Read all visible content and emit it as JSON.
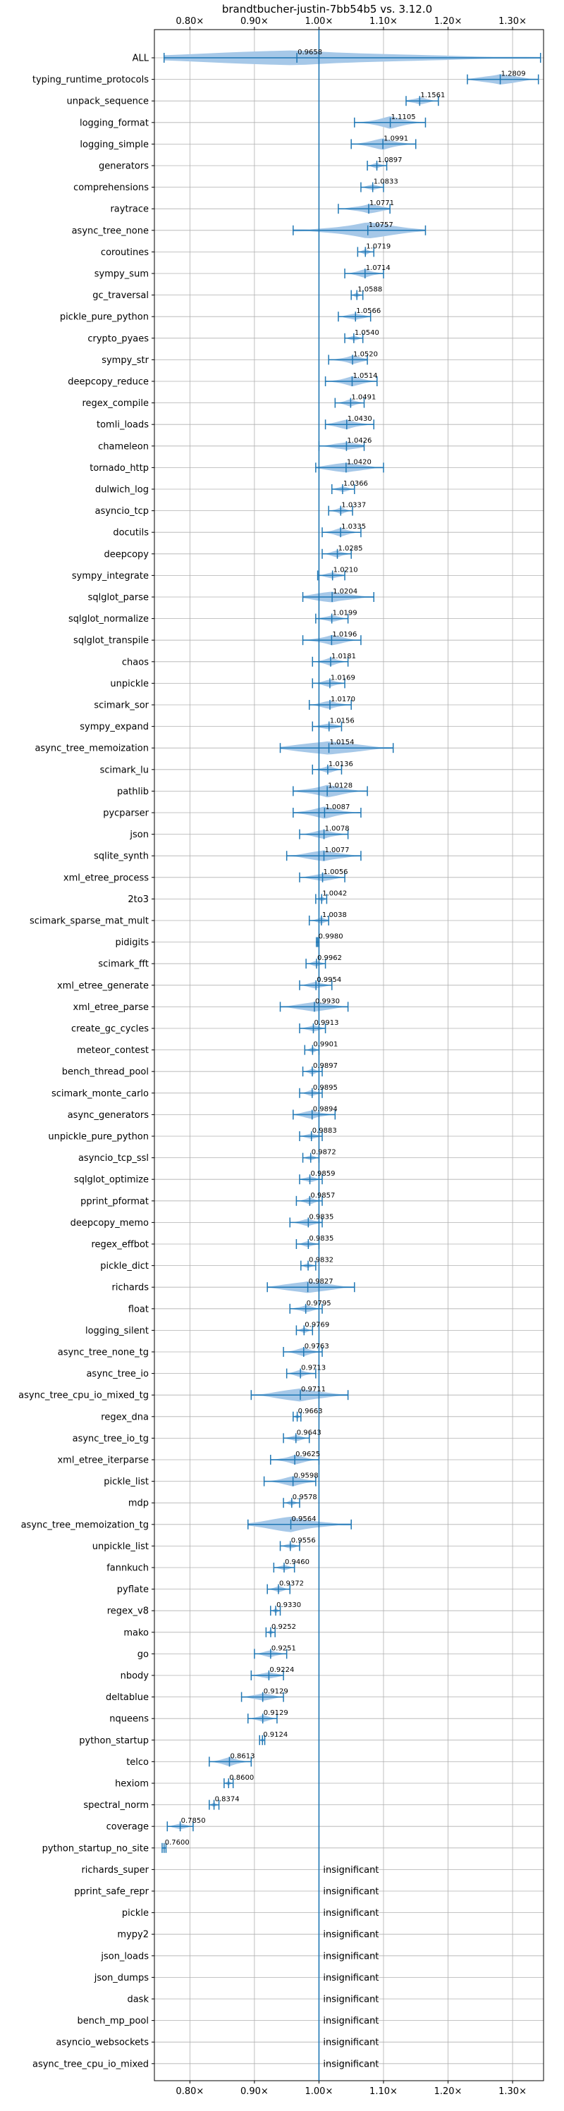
{
  "chart_data": {
    "type": "violin",
    "title": "brandtbucher-justin-7bb54b5 vs. 3.12.0",
    "xlabel": "",
    "ylabel": "",
    "xlim": [
      0.745,
      1.348
    ],
    "x_ticks": [
      {
        "value": 0.8,
        "label": "0.80×"
      },
      {
        "value": 0.9,
        "label": "0.90×"
      },
      {
        "value": 1.0,
        "label": "1.00×"
      },
      {
        "value": 1.1,
        "label": "1.10×"
      },
      {
        "value": 1.2,
        "label": "1.20×"
      },
      {
        "value": 1.3,
        "label": "1.30×"
      }
    ],
    "reference_line": 1.0,
    "grid": true,
    "color": "#1f77b4",
    "fill_color": "#a6c8e8",
    "insignificant_label": "insignificant",
    "benchmarks": [
      {
        "name": "ALL",
        "median": 0.9658,
        "min": 0.76,
        "max": 1.3433,
        "show_label": true
      },
      {
        "name": "typing_runtime_protocols",
        "median": 1.2809,
        "min": 1.23,
        "max": 1.34,
        "show_label": true
      },
      {
        "name": "unpack_sequence",
        "median": 1.1561,
        "min": 1.135,
        "max": 1.185,
        "show_label": true
      },
      {
        "name": "logging_format",
        "median": 1.1105,
        "min": 1.055,
        "max": 1.165,
        "show_label": true
      },
      {
        "name": "logging_simple",
        "median": 1.0991,
        "min": 1.05,
        "max": 1.15,
        "show_label": true
      },
      {
        "name": "generators",
        "median": 1.0897,
        "min": 1.075,
        "max": 1.105,
        "show_label": true
      },
      {
        "name": "comprehensions",
        "median": 1.0833,
        "min": 1.065,
        "max": 1.1,
        "show_label": true
      },
      {
        "name": "raytrace",
        "median": 1.0771,
        "min": 1.03,
        "max": 1.11,
        "show_label": true
      },
      {
        "name": "async_tree_none",
        "median": 1.0757,
        "min": 0.96,
        "max": 1.165,
        "show_label": true
      },
      {
        "name": "coroutines",
        "median": 1.0719,
        "min": 1.06,
        "max": 1.085,
        "show_label": true
      },
      {
        "name": "sympy_sum",
        "median": 1.0714,
        "min": 1.04,
        "max": 1.1,
        "show_label": true
      },
      {
        "name": "gc_traversal",
        "median": 1.0588,
        "min": 1.05,
        "max": 1.068,
        "show_label": true
      },
      {
        "name": "pickle_pure_python",
        "median": 1.0566,
        "min": 1.03,
        "max": 1.08,
        "show_label": true
      },
      {
        "name": "crypto_pyaes",
        "median": 1.054,
        "min": 1.04,
        "max": 1.068,
        "show_label": true
      },
      {
        "name": "sympy_str",
        "median": 1.052,
        "min": 1.015,
        "max": 1.075,
        "show_label": true
      },
      {
        "name": "deepcopy_reduce",
        "median": 1.0514,
        "min": 1.01,
        "max": 1.09,
        "show_label": true
      },
      {
        "name": "regex_compile",
        "median": 1.0491,
        "min": 1.025,
        "max": 1.07,
        "show_label": true
      },
      {
        "name": "tomli_loads",
        "median": 1.043,
        "min": 1.01,
        "max": 1.085,
        "show_label": true
      },
      {
        "name": "chameleon",
        "median": 1.0426,
        "min": 1.0,
        "max": 1.07,
        "show_label": true
      },
      {
        "name": "tornado_http",
        "median": 1.042,
        "min": 0.995,
        "max": 1.1,
        "show_label": true
      },
      {
        "name": "dulwich_log",
        "median": 1.0366,
        "min": 1.02,
        "max": 1.055,
        "show_label": true
      },
      {
        "name": "asyncio_tcp",
        "median": 1.0337,
        "min": 1.015,
        "max": 1.052,
        "show_label": true
      },
      {
        "name": "docutils",
        "median": 1.0335,
        "min": 1.005,
        "max": 1.065,
        "show_label": true
      },
      {
        "name": "deepcopy",
        "median": 1.0285,
        "min": 1.005,
        "max": 1.05,
        "show_label": true
      },
      {
        "name": "sympy_integrate",
        "median": 1.021,
        "min": 0.998,
        "max": 1.04,
        "show_label": true
      },
      {
        "name": "sqlglot_parse",
        "median": 1.0204,
        "min": 0.975,
        "max": 1.085,
        "show_label": true
      },
      {
        "name": "sqlglot_normalize",
        "median": 1.0199,
        "min": 0.995,
        "max": 1.045,
        "show_label": true
      },
      {
        "name": "sqlglot_transpile",
        "median": 1.0196,
        "min": 0.975,
        "max": 1.065,
        "show_label": true
      },
      {
        "name": "chaos",
        "median": 1.0181,
        "min": 0.99,
        "max": 1.045,
        "show_label": true
      },
      {
        "name": "unpickle",
        "median": 1.0169,
        "min": 0.99,
        "max": 1.04,
        "show_label": true
      },
      {
        "name": "scimark_sor",
        "median": 1.017,
        "min": 0.985,
        "max": 1.05,
        "show_label": true
      },
      {
        "name": "sympy_expand",
        "median": 1.0156,
        "min": 0.99,
        "max": 1.035,
        "show_label": true
      },
      {
        "name": "async_tree_memoization",
        "median": 1.0154,
        "min": 0.94,
        "max": 1.115,
        "show_label": true
      },
      {
        "name": "scimark_lu",
        "median": 1.0136,
        "min": 0.99,
        "max": 1.035,
        "show_label": true
      },
      {
        "name": "pathlib",
        "median": 1.0128,
        "min": 0.96,
        "max": 1.075,
        "show_label": true
      },
      {
        "name": "pycparser",
        "median": 1.0087,
        "min": 0.96,
        "max": 1.065,
        "show_label": true
      },
      {
        "name": "json",
        "median": 1.0078,
        "min": 0.97,
        "max": 1.045,
        "show_label": true
      },
      {
        "name": "sqlite_synth",
        "median": 1.0077,
        "min": 0.95,
        "max": 1.065,
        "show_label": true
      },
      {
        "name": "xml_etree_process",
        "median": 1.0056,
        "min": 0.97,
        "max": 1.04,
        "show_label": true
      },
      {
        "name": "2to3",
        "median": 1.0042,
        "min": 0.995,
        "max": 1.012,
        "show_label": true
      },
      {
        "name": "scimark_sparse_mat_mult",
        "median": 1.0038,
        "min": 0.985,
        "max": 1.015,
        "show_label": true
      },
      {
        "name": "pidigits",
        "median": 0.998,
        "min": 0.996,
        "max": 1.0,
        "show_label": true
      },
      {
        "name": "scimark_fft",
        "median": 0.9962,
        "min": 0.98,
        "max": 1.01,
        "show_label": true
      },
      {
        "name": "xml_etree_generate",
        "median": 0.9954,
        "min": 0.97,
        "max": 1.02,
        "show_label": true
      },
      {
        "name": "xml_etree_parse",
        "median": 0.993,
        "min": 0.94,
        "max": 1.045,
        "show_label": true
      },
      {
        "name": "create_gc_cycles",
        "median": 0.9913,
        "min": 0.97,
        "max": 1.01,
        "show_label": true
      },
      {
        "name": "meteor_contest",
        "median": 0.9901,
        "min": 0.978,
        "max": 1.0,
        "show_label": true
      },
      {
        "name": "bench_thread_pool",
        "median": 0.9897,
        "min": 0.975,
        "max": 1.005,
        "show_label": true
      },
      {
        "name": "scimark_monte_carlo",
        "median": 0.9895,
        "min": 0.97,
        "max": 1.005,
        "show_label": true
      },
      {
        "name": "async_generators",
        "median": 0.9894,
        "min": 0.96,
        "max": 1.025,
        "show_label": true
      },
      {
        "name": "unpickle_pure_python",
        "median": 0.9883,
        "min": 0.97,
        "max": 1.005,
        "show_label": true
      },
      {
        "name": "asyncio_tcp_ssl",
        "median": 0.9872,
        "min": 0.975,
        "max": 1.0,
        "show_label": true
      },
      {
        "name": "sqlglot_optimize",
        "median": 0.9859,
        "min": 0.97,
        "max": 1.005,
        "show_label": true
      },
      {
        "name": "pprint_pformat",
        "median": 0.9857,
        "min": 0.965,
        "max": 1.005,
        "show_label": true
      },
      {
        "name": "deepcopy_memo",
        "median": 0.9835,
        "min": 0.955,
        "max": 1.005,
        "show_label": true
      },
      {
        "name": "regex_effbot",
        "median": 0.9835,
        "min": 0.965,
        "max": 1.0,
        "show_label": true
      },
      {
        "name": "pickle_dict",
        "median": 0.9832,
        "min": 0.972,
        "max": 0.995,
        "show_label": true
      },
      {
        "name": "richards",
        "median": 0.9827,
        "min": 0.92,
        "max": 1.055,
        "show_label": true
      },
      {
        "name": "float",
        "median": 0.9795,
        "min": 0.955,
        "max": 1.005,
        "show_label": true
      },
      {
        "name": "logging_silent",
        "median": 0.9769,
        "min": 0.965,
        "max": 0.99,
        "show_label": true
      },
      {
        "name": "async_tree_none_tg",
        "median": 0.9763,
        "min": 0.945,
        "max": 1.005,
        "show_label": true
      },
      {
        "name": "async_tree_io",
        "median": 0.9713,
        "min": 0.95,
        "max": 0.995,
        "show_label": true
      },
      {
        "name": "async_tree_cpu_io_mixed_tg",
        "median": 0.9711,
        "min": 0.895,
        "max": 1.045,
        "show_label": true
      },
      {
        "name": "regex_dna",
        "median": 0.9663,
        "min": 0.96,
        "max": 0.972,
        "show_label": true
      },
      {
        "name": "async_tree_io_tg",
        "median": 0.9643,
        "min": 0.945,
        "max": 0.985,
        "show_label": true
      },
      {
        "name": "xml_etree_iterparse",
        "median": 0.9625,
        "min": 0.925,
        "max": 1.0,
        "show_label": true
      },
      {
        "name": "pickle_list",
        "median": 0.9598,
        "min": 0.915,
        "max": 0.995,
        "show_label": true
      },
      {
        "name": "mdp",
        "median": 0.9578,
        "min": 0.945,
        "max": 0.97,
        "show_label": true
      },
      {
        "name": "async_tree_memoization_tg",
        "median": 0.9564,
        "min": 0.89,
        "max": 1.05,
        "show_label": true
      },
      {
        "name": "unpickle_list",
        "median": 0.9556,
        "min": 0.94,
        "max": 0.97,
        "show_label": true
      },
      {
        "name": "fannkuch",
        "median": 0.946,
        "min": 0.93,
        "max": 0.962,
        "show_label": true
      },
      {
        "name": "pyflate",
        "median": 0.9372,
        "min": 0.92,
        "max": 0.955,
        "show_label": true
      },
      {
        "name": "regex_v8",
        "median": 0.933,
        "min": 0.925,
        "max": 0.94,
        "show_label": true
      },
      {
        "name": "mako",
        "median": 0.9252,
        "min": 0.918,
        "max": 0.932,
        "show_label": true
      },
      {
        "name": "go",
        "median": 0.9251,
        "min": 0.9,
        "max": 0.95,
        "show_label": true
      },
      {
        "name": "nbody",
        "median": 0.9224,
        "min": 0.895,
        "max": 0.945,
        "show_label": true
      },
      {
        "name": "deltablue",
        "median": 0.9129,
        "min": 0.88,
        "max": 0.945,
        "show_label": true
      },
      {
        "name": "nqueens",
        "median": 0.9129,
        "min": 0.89,
        "max": 0.935,
        "show_label": true
      },
      {
        "name": "python_startup",
        "median": 0.9124,
        "min": 0.908,
        "max": 0.916,
        "show_label": true
      },
      {
        "name": "telco",
        "median": 0.8613,
        "min": 0.83,
        "max": 0.895,
        "show_label": true
      },
      {
        "name": "hexiom",
        "median": 0.86,
        "min": 0.853,
        "max": 0.867,
        "show_label": true
      },
      {
        "name": "spectral_norm",
        "median": 0.8374,
        "min": 0.83,
        "max": 0.845,
        "show_label": true
      },
      {
        "name": "coverage",
        "median": 0.785,
        "min": 0.765,
        "max": 0.805,
        "show_label": true
      },
      {
        "name": "python_startup_no_site",
        "median": 0.76,
        "min": 0.757,
        "max": 0.763,
        "show_label": true
      },
      {
        "name": "richards_super",
        "insignificant": true
      },
      {
        "name": "pprint_safe_repr",
        "insignificant": true
      },
      {
        "name": "pickle",
        "insignificant": true
      },
      {
        "name": "mypy2",
        "insignificant": true
      },
      {
        "name": "json_loads",
        "insignificant": true
      },
      {
        "name": "json_dumps",
        "insignificant": true
      },
      {
        "name": "dask",
        "insignificant": true
      },
      {
        "name": "bench_mp_pool",
        "insignificant": true
      },
      {
        "name": "asyncio_websockets",
        "insignificant": true
      },
      {
        "name": "async_tree_cpu_io_mixed",
        "insignificant": true
      }
    ]
  }
}
